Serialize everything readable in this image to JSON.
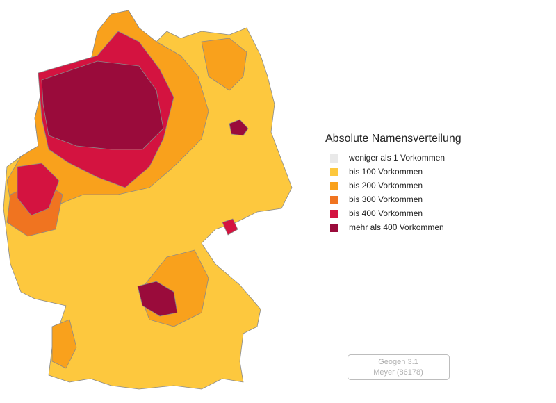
{
  "legend": {
    "title": "Absolute Namensverteilung",
    "items": [
      {
        "label": "weniger als 1 Vorkommen",
        "color": "#e9e9e9"
      },
      {
        "label": "bis 100 Vorkommen",
        "color": "#fdc83e"
      },
      {
        "label": "bis 200 Vorkommen",
        "color": "#f9a11c"
      },
      {
        "label": "bis 300 Vorkommen",
        "color": "#f07420"
      },
      {
        "label": "bis 400 Vorkommen",
        "color": "#d41340"
      },
      {
        "label": "mehr als 400 Vorkommen",
        "color": "#9a0b3b"
      }
    ]
  },
  "button": {
    "line1": "Geogen 3.1",
    "line2": "Meyer (86178)"
  }
}
